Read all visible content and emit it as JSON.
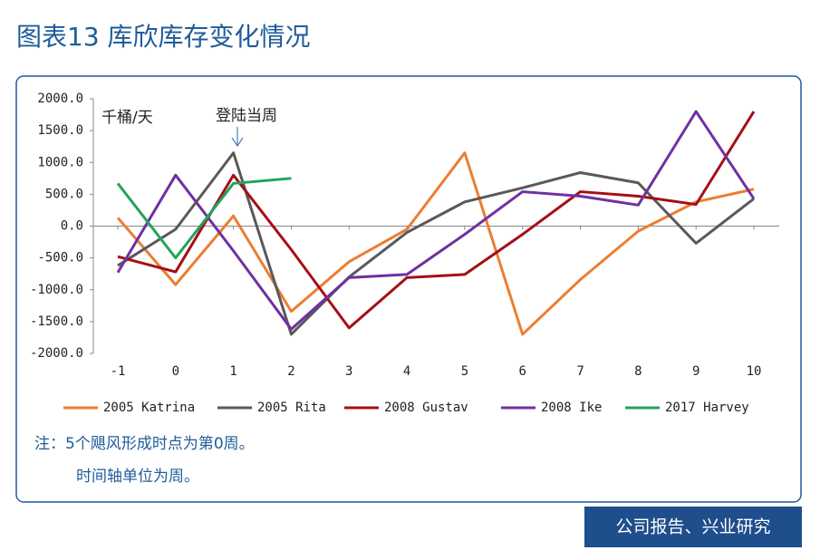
{
  "chart_data": {
    "type": "line",
    "title": "图表13 库欣库存变化情况",
    "y_unit": "千桶/天",
    "annotation": "登陆当周",
    "notes": [
      "注：5个飓风形成时点为第0周。",
      "时间轴单位为周。"
    ],
    "source": "公司报告、兴业研究",
    "x": [
      -1,
      0,
      1,
      2,
      3,
      4,
      5,
      6,
      7,
      8,
      9,
      10
    ],
    "xlim": [
      -1,
      10
    ],
    "xticks": [
      -1,
      0,
      1,
      2,
      3,
      4,
      5,
      6,
      7,
      8,
      9,
      10
    ],
    "ylim": [
      -2000,
      2000
    ],
    "yticks": [
      {
        "value": 2000,
        "label": "2000.0"
      },
      {
        "value": 1500,
        "label": "1500.0"
      },
      {
        "value": 1000,
        "label": "1000.0"
      },
      {
        "value": 500,
        "label": "500.0"
      },
      {
        "value": 0,
        "label": "0.0"
      },
      {
        "value": -500,
        "label": "-500.0"
      },
      {
        "value": -1000,
        "label": "-1000.0"
      },
      {
        "value": -1500,
        "label": "-1500.0"
      },
      {
        "value": -2000,
        "label": "-2000.0"
      }
    ],
    "series": [
      {
        "name": "2005 Katrina",
        "color": "#ed7d31",
        "values": [
          130,
          -920,
          160,
          -1340,
          -560,
          -50,
          1150,
          -1700,
          -840,
          -80,
          380,
          580
        ]
      },
      {
        "name": "2005 Rita",
        "color": "#595959",
        "values": [
          -620,
          -50,
          1150,
          -1700,
          -800,
          -100,
          380,
          600,
          840,
          680,
          -270,
          430
        ]
      },
      {
        "name": "2008 Gustav",
        "color": "#a50f15",
        "values": [
          -480,
          -720,
          800,
          -370,
          -1600,
          -810,
          -760,
          -130,
          540,
          470,
          340,
          1800
        ]
      },
      {
        "name": "2008 Ike",
        "color": "#7030a0",
        "values": [
          -730,
          800,
          -390,
          -1620,
          -810,
          -760,
          -130,
          540,
          470,
          330,
          1800,
          430
        ]
      },
      {
        "name": "2017 Harvey",
        "color": "#23a35a",
        "values": [
          670,
          -500,
          670,
          750,
          null,
          null,
          null,
          null,
          null,
          null,
          null,
          null
        ]
      }
    ]
  }
}
